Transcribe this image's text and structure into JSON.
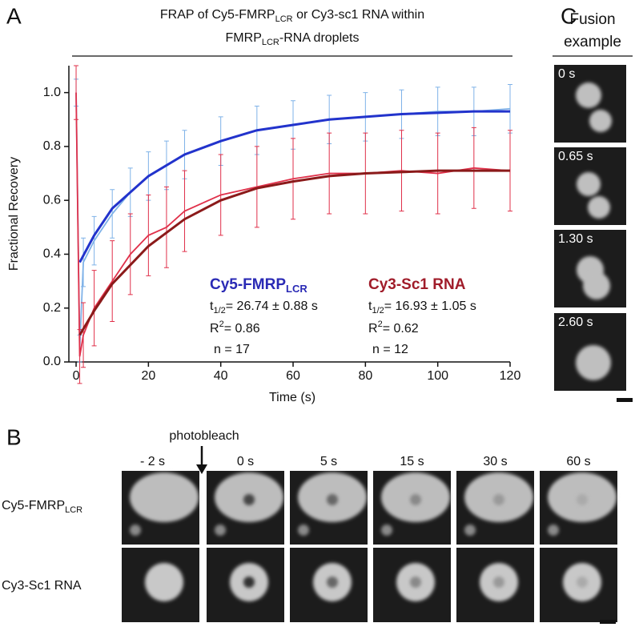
{
  "chart_data": {
    "type": "frap",
    "panel_label": "A",
    "title": [
      "FRAP of Cy5-FMRP",
      "LCR",
      " or Cy3-sc1 RNA within",
      "FMRP",
      "LCR",
      "-RNA droplets"
    ],
    "xlabel": "Time (s)",
    "ylabel": "Fractional Recovery",
    "xlim": [
      -2,
      120
    ],
    "xticks": [
      0,
      20,
      40,
      60,
      80,
      100,
      120
    ],
    "ylim": [
      0,
      1.1
    ],
    "yticks": [
      {
        "value": 0,
        "label": "0.0"
      },
      0.2,
      0.4,
      0.6,
      0.8,
      {
        "value": 1,
        "label": "1.0"
      }
    ],
    "series": [
      {
        "name": "Cy5-FMRP",
        "name_sub": "LCR",
        "color": "#7fb2e8",
        "x": [
          0,
          1,
          2,
          5,
          10,
          15,
          20,
          25,
          30,
          40,
          50,
          60,
          70,
          80,
          90,
          100,
          110,
          120
        ],
        "values": [
          1.0,
          0.05,
          0.37,
          0.45,
          0.55,
          0.63,
          0.69,
          0.73,
          0.77,
          0.82,
          0.86,
          0.88,
          0.9,
          0.91,
          0.92,
          0.93,
          0.93,
          0.94
        ],
        "errors": [
          0.05,
          0.05,
          0.09,
          0.09,
          0.09,
          0.09,
          0.09,
          0.09,
          0.09,
          0.09,
          0.09,
          0.09,
          0.09,
          0.09,
          0.09,
          0.09,
          0.09,
          0.09
        ]
      },
      {
        "color": "#2233cc",
        "x": [
          1,
          5,
          10,
          20,
          30,
          40,
          50,
          60,
          70,
          80,
          90,
          100,
          110,
          120
        ],
        "values": [
          0.37,
          0.47,
          0.57,
          0.69,
          0.77,
          0.82,
          0.86,
          0.88,
          0.9,
          0.91,
          0.92,
          0.925,
          0.93,
          0.93
        ]
      },
      {
        "name": "Cy3-Sc1 RNA",
        "color": "#e0304a",
        "x": [
          0,
          1,
          2,
          5,
          10,
          15,
          20,
          25,
          30,
          40,
          50,
          60,
          70,
          80,
          90,
          100,
          110,
          120
        ],
        "values": [
          1.0,
          0.02,
          0.1,
          0.2,
          0.3,
          0.4,
          0.47,
          0.5,
          0.56,
          0.62,
          0.65,
          0.68,
          0.7,
          0.7,
          0.71,
          0.7,
          0.72,
          0.71
        ],
        "errors": [
          0.1,
          0.1,
          0.12,
          0.14,
          0.15,
          0.15,
          0.15,
          0.15,
          0.15,
          0.15,
          0.15,
          0.15,
          0.15,
          0.15,
          0.15,
          0.15,
          0.15,
          0.15
        ]
      },
      {
        "color": "#8b1a1a",
        "x": [
          1,
          5,
          10,
          20,
          30,
          40,
          50,
          60,
          70,
          80,
          90,
          100,
          110,
          120
        ],
        "values": [
          0.1,
          0.19,
          0.29,
          0.43,
          0.53,
          0.6,
          0.645,
          0.67,
          0.69,
          0.7,
          0.705,
          0.71,
          0.71,
          0.71
        ]
      }
    ],
    "annotations": [
      {
        "color": "#2a2ab5",
        "t": "t",
        "t_sub": "1/2",
        "t_value": "= 26.74 ± 0.88 s",
        "r": "R",
        "r_sup": "2",
        "r_value": "= 0.86",
        "n": "n = 17"
      },
      {
        "color": "#a01c2a",
        "t": "t",
        "t_sub": "1/2",
        "t_value": "= 16.93 ± 1.05 s",
        "r": "R",
        "r_sup": "2",
        "r_value": "= 0.62",
        "n": "n = 12"
      }
    ]
  },
  "panel_b": {
    "label": "B",
    "arrow_label": "photobleach",
    "times": [
      "- 2 s",
      "0 s",
      "5 s",
      "15 s",
      "30 s",
      "60 s"
    ],
    "rows": [
      [
        "Cy5-FMRP",
        "LCR"
      ],
      [
        "Cy3-Sc1 RNA"
      ]
    ]
  },
  "panel_c": {
    "label": "C",
    "title": [
      "Fusion",
      "example"
    ],
    "frames": [
      "0 s",
      "0.65 s",
      "1.30 s",
      "2.60 s"
    ]
  }
}
